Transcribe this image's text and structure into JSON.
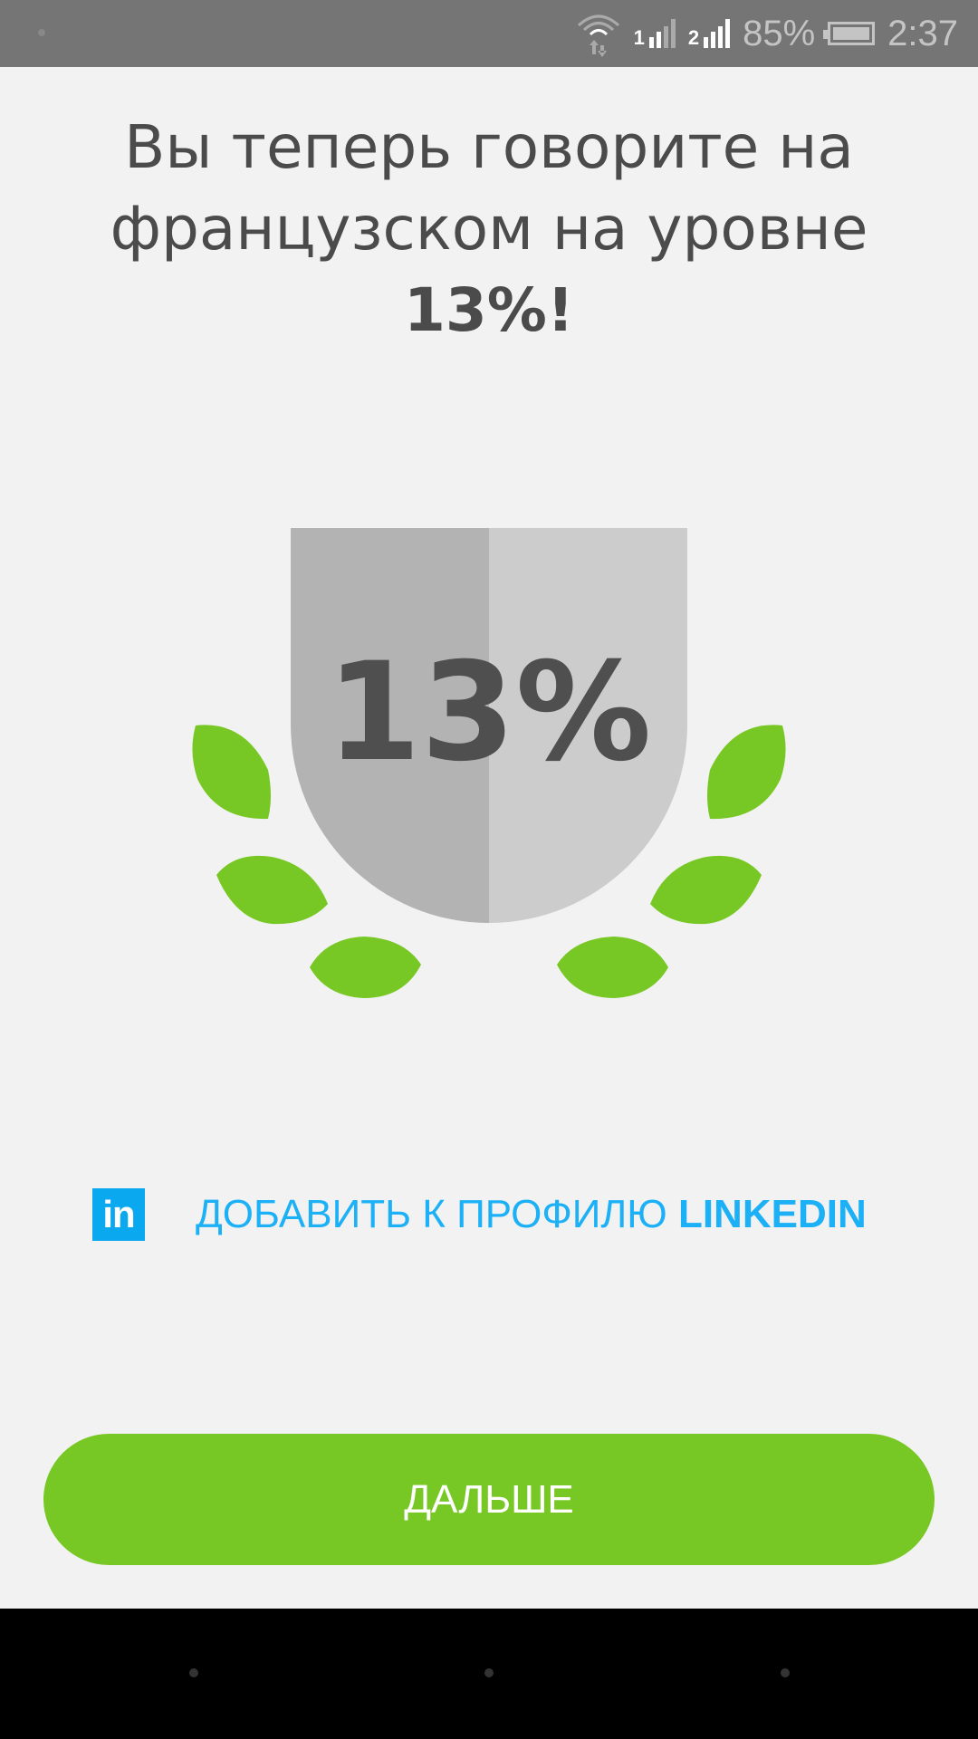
{
  "status_bar": {
    "battery": "85%",
    "time": "2:37",
    "sim1": "1",
    "sim2": "2",
    "battery_level": 0.85
  },
  "title": {
    "line1": "Вы теперь говорите на",
    "line2": "французском на уровне",
    "percent": "13%!"
  },
  "badge": {
    "value": "13%",
    "progress_percent": 13,
    "leaf_color": "#78c825"
  },
  "linkedin": {
    "icon_text": "in",
    "label_regular": "ДОБАВИТЬ К ПРОФИЛЮ ",
    "label_bold": "LINKEDIN",
    "color": "#1cb0f6"
  },
  "continue_button": {
    "label": "ДАЛЬШЕ",
    "color": "#78c825"
  }
}
